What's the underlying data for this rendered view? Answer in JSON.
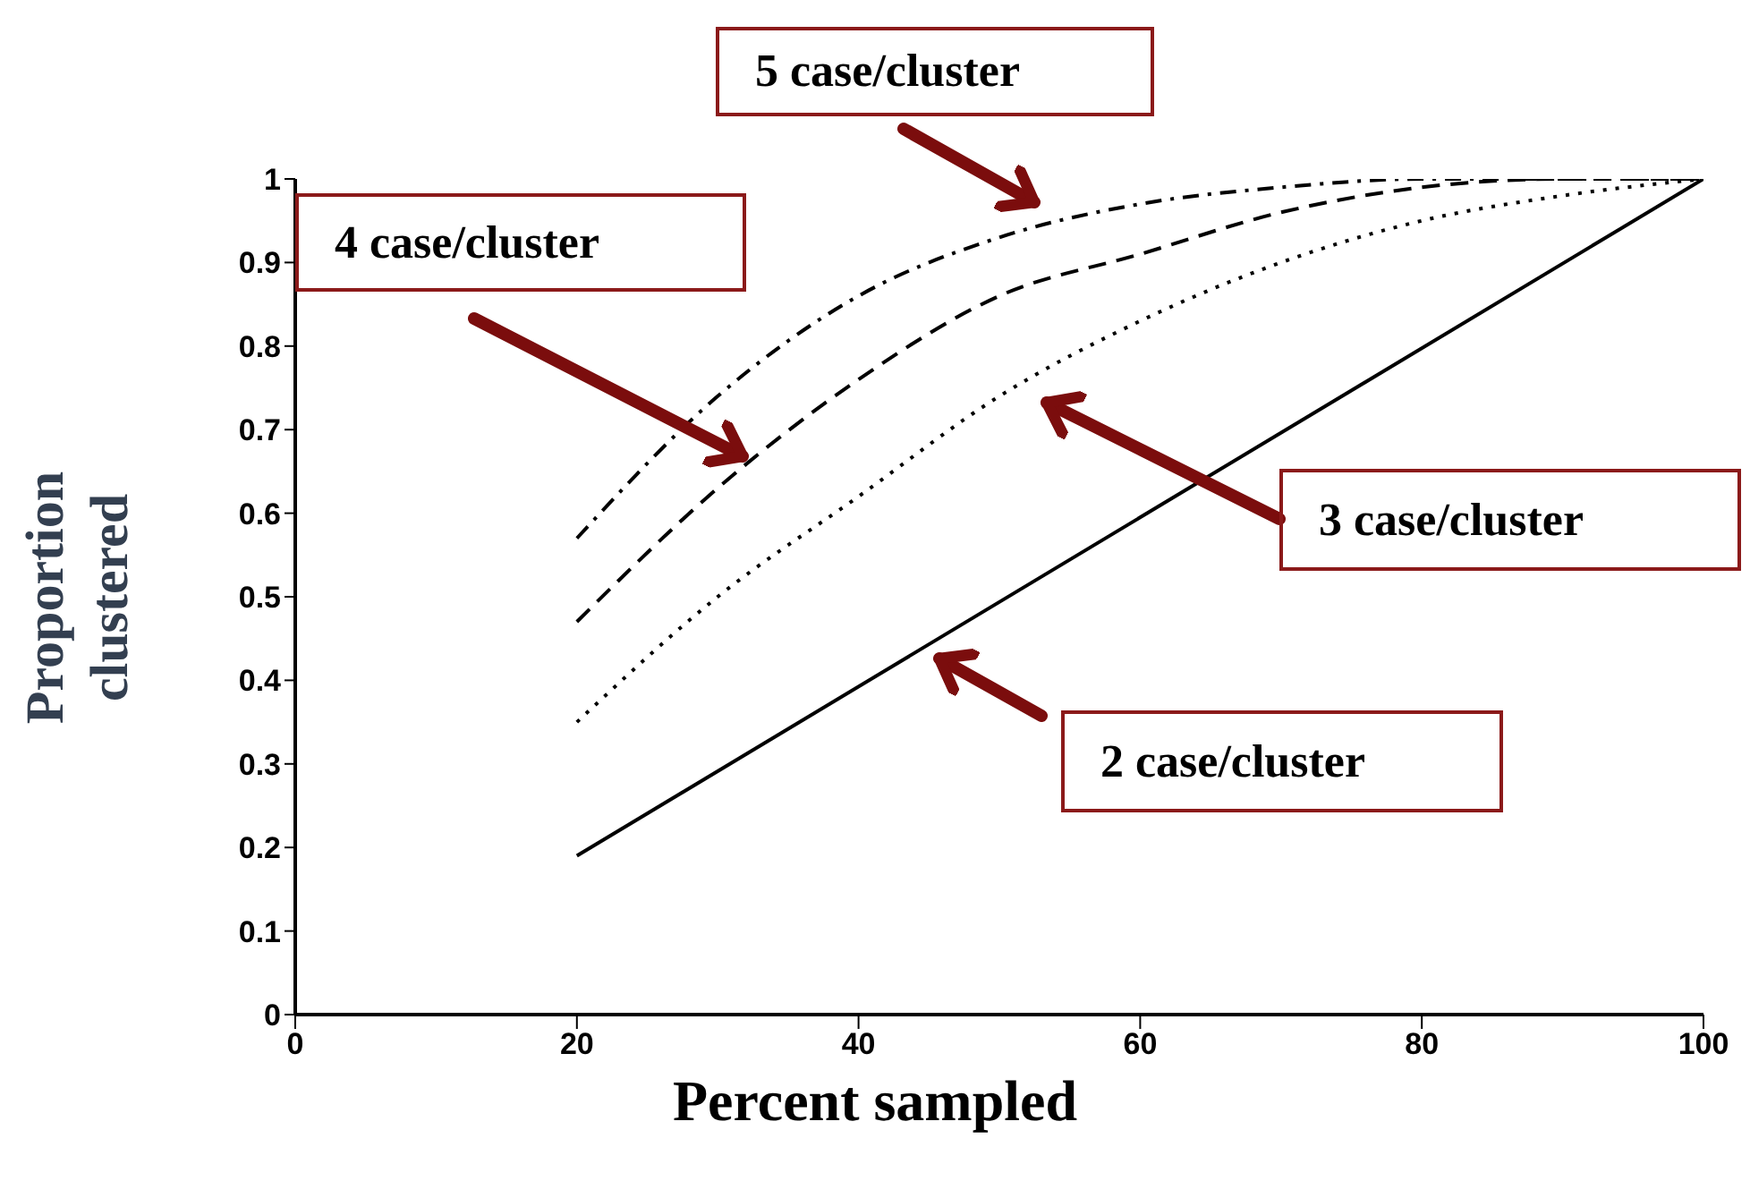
{
  "chart_data": {
    "type": "line",
    "xlabel": "Percent sampled",
    "ylabel": "Proportion clustered",
    "xlim": [
      0,
      100
    ],
    "xticks": [
      0,
      20,
      40,
      60,
      80,
      100
    ],
    "ylim": [
      0,
      1
    ],
    "yticks": [
      0,
      0.1,
      0.2,
      0.3,
      0.4,
      0.5,
      0.6,
      0.7,
      0.8,
      0.9,
      1
    ],
    "grid": false,
    "legend": false,
    "marker": "none",
    "series": [
      {
        "color": "#000000",
        "line_style": "solid",
        "x": [
          20,
          100
        ],
        "values": [
          0.19,
          1.0
        ]
      },
      {
        "color": "#000000",
        "line_style": "dotted",
        "x": [
          20,
          30,
          40,
          50,
          60,
          70,
          80,
          90,
          100
        ],
        "values": [
          0.35,
          0.5,
          0.62,
          0.74,
          0.83,
          0.9,
          0.95,
          0.98,
          1.0
        ]
      },
      {
        "color": "#000000",
        "line_style": "dashed",
        "x": [
          20,
          30,
          40,
          50,
          60,
          70,
          80,
          90,
          100
        ],
        "values": [
          0.47,
          0.63,
          0.76,
          0.86,
          0.91,
          0.96,
          0.99,
          1.0,
          1.0
        ]
      },
      {
        "color": "#000000",
        "line_style": "dashdot",
        "x": [
          20,
          30,
          40,
          50,
          60,
          70,
          80,
          90,
          100
        ],
        "values": [
          0.57,
          0.74,
          0.86,
          0.93,
          0.97,
          0.99,
          1.0,
          1.0,
          1.0
        ]
      }
    ],
    "annotations": [
      "5 case/cluster",
      "4 case/cluster",
      "3 case/cluster",
      "2 case/cluster"
    ]
  }
}
